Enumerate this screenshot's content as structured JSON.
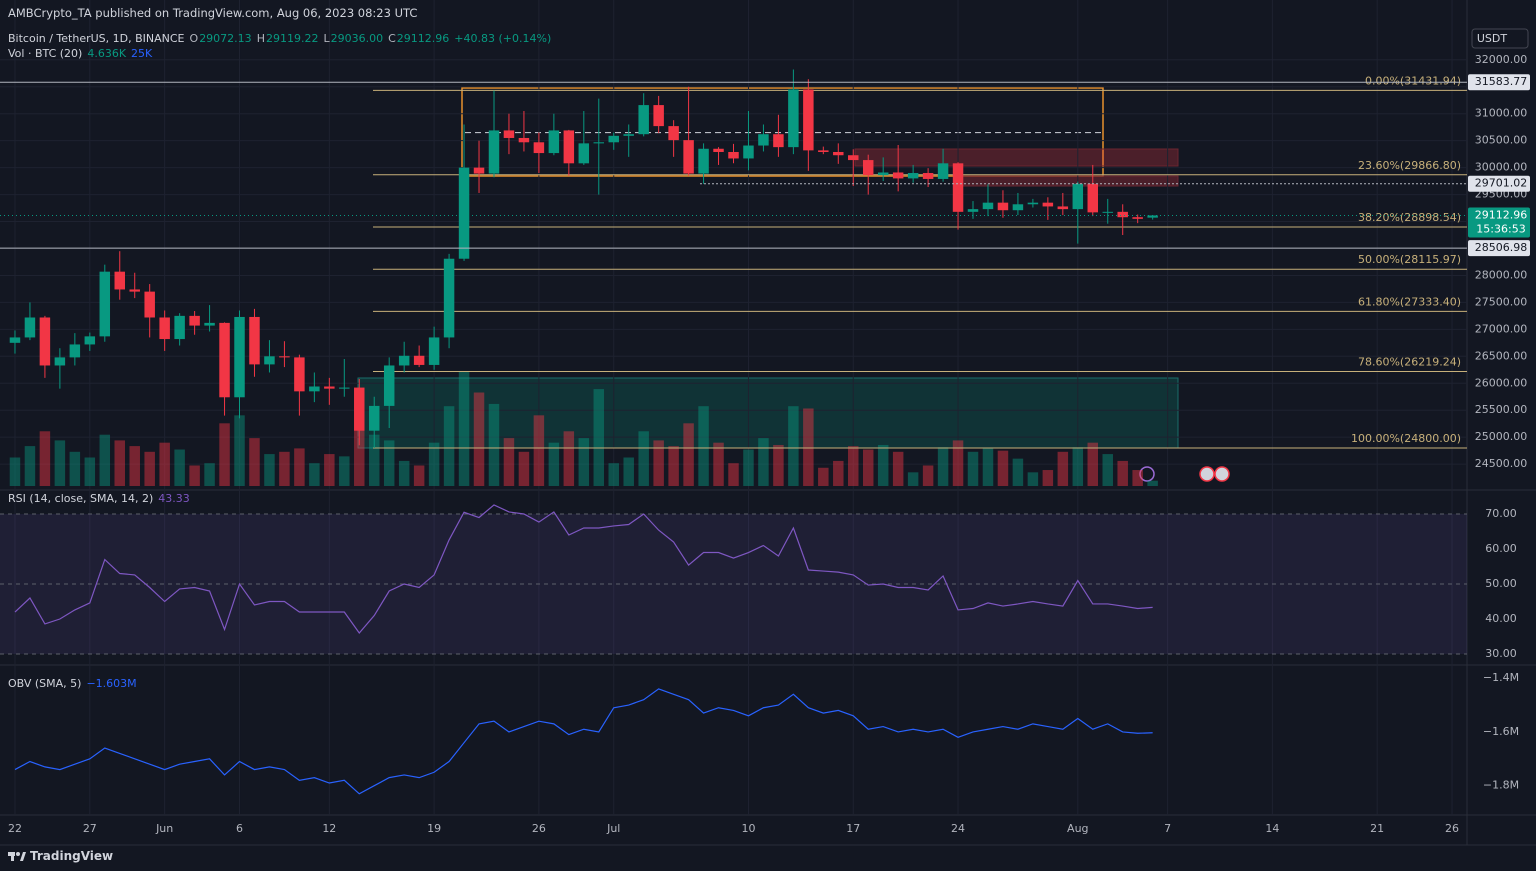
{
  "header": {
    "publisher": "AMBCrypto_TA published on TradingView.com, Aug 06, 2023 08:23 UTC",
    "currency": "USDT",
    "footer": "TradingView"
  },
  "chart_data": [
    {
      "type": "candlestick",
      "title": "Bitcoin / TetherUS, 1D, BINANCE",
      "ohlc_legend": [
        {
          "label": "O",
          "value": "29072.13"
        },
        {
          "label": "H",
          "value": "29119.22"
        },
        {
          "label": "L",
          "value": "29036.00"
        },
        {
          "label": "C",
          "value": "29112.96"
        }
      ],
      "change": "+40.83 (+0.14%)",
      "x": [
        "2023-05-22",
        "2023-05-23",
        "2023-05-24",
        "2023-05-25",
        "2023-05-26",
        "2023-05-27",
        "2023-05-28",
        "2023-05-29",
        "2023-05-30",
        "2023-05-31",
        "2023-06-01",
        "2023-06-02",
        "2023-06-03",
        "2023-06-04",
        "2023-06-05",
        "2023-06-06",
        "2023-06-07",
        "2023-06-08",
        "2023-06-09",
        "2023-06-10",
        "2023-06-11",
        "2023-06-12",
        "2023-06-13",
        "2023-06-14",
        "2023-06-15",
        "2023-06-16",
        "2023-06-17",
        "2023-06-18",
        "2023-06-19",
        "2023-06-20",
        "2023-06-21",
        "2023-06-22",
        "2023-06-23",
        "2023-06-24",
        "2023-06-25",
        "2023-06-26",
        "2023-06-27",
        "2023-06-28",
        "2023-06-29",
        "2023-06-30",
        "2023-07-01",
        "2023-07-02",
        "2023-07-03",
        "2023-07-04",
        "2023-07-05",
        "2023-07-06",
        "2023-07-07",
        "2023-07-08",
        "2023-07-09",
        "2023-07-10",
        "2023-07-11",
        "2023-07-12",
        "2023-07-13",
        "2023-07-14",
        "2023-07-15",
        "2023-07-16",
        "2023-07-17",
        "2023-07-18",
        "2023-07-19",
        "2023-07-20",
        "2023-07-21",
        "2023-07-22",
        "2023-07-23",
        "2023-07-24",
        "2023-07-25",
        "2023-07-26",
        "2023-07-27",
        "2023-07-28",
        "2023-07-29",
        "2023-07-30",
        "2023-07-31",
        "2023-08-01",
        "2023-08-02",
        "2023-08-03",
        "2023-08-04",
        "2023-08-05",
        "2023-08-06"
      ],
      "open": [
        26750,
        26850,
        27220,
        26330,
        26480,
        26720,
        26870,
        28070,
        27740,
        27700,
        27220,
        26820,
        27250,
        27070,
        27120,
        25740,
        27230,
        26350,
        26500,
        26480,
        25850,
        25940,
        25900,
        25920,
        25120,
        25580,
        26330,
        26510,
        26340,
        26850,
        28310,
        30000,
        29890,
        30690,
        30550,
        30470,
        30270,
        30690,
        30080,
        30450,
        30470,
        30590,
        30620,
        31160,
        30770,
        30510,
        29890,
        30350,
        30290,
        30170,
        30410,
        30620,
        30380,
        31450,
        30320,
        30290,
        30230,
        30140,
        29860,
        29910,
        29800,
        29900,
        29790,
        30080,
        29180,
        29230,
        29350,
        29210,
        29320,
        29350,
        29280,
        29230,
        29700,
        29170,
        29180,
        29080,
        29072.13
      ],
      "high": [
        26980,
        27500,
        27250,
        26650,
        26930,
        26940,
        28200,
        28450,
        28050,
        27840,
        27350,
        27300,
        27340,
        27450,
        27130,
        27350,
        27380,
        26800,
        26780,
        26530,
        26200,
        26100,
        26450,
        26080,
        25750,
        26480,
        26770,
        26700,
        27050,
        28400,
        30800,
        30500,
        31430,
        31000,
        31050,
        30650,
        31000,
        30700,
        31050,
        31280,
        30650,
        30800,
        31380,
        31330,
        30880,
        31500,
        30450,
        30380,
        30440,
        31050,
        30800,
        30980,
        31820,
        31640,
        30390,
        30450,
        30340,
        30240,
        30190,
        30420,
        30050,
        29990,
        30350,
        30100,
        29380,
        29690,
        29580,
        29530,
        29420,
        29450,
        29530,
        29740,
        30050,
        29420,
        29320,
        29130,
        29119.22
      ],
      "low": [
        26550,
        26800,
        26100,
        25900,
        26330,
        26600,
        26770,
        27550,
        27580,
        26850,
        26600,
        26700,
        26900,
        26960,
        25400,
        25350,
        26120,
        26200,
        26300,
        25400,
        25650,
        25600,
        25750,
        24850,
        24800,
        25170,
        26200,
        26300,
        26250,
        26650,
        28270,
        29530,
        29820,
        30250,
        30300,
        29900,
        30230,
        29850,
        30050,
        29500,
        30330,
        30200,
        30580,
        30640,
        30200,
        29850,
        29700,
        30050,
        30080,
        29950,
        30300,
        30200,
        30250,
        29940,
        30250,
        30070,
        29660,
        29500,
        29750,
        29560,
        29720,
        29640,
        29740,
        28850,
        29050,
        29100,
        29070,
        29120,
        29260,
        29030,
        29120,
        28590,
        29100,
        28960,
        28750,
        28970,
        29036
      ],
      "close": [
        26850,
        27220,
        26330,
        26480,
        26720,
        26870,
        28070,
        27740,
        27700,
        27220,
        26820,
        27250,
        27070,
        27120,
        25740,
        27230,
        26350,
        26500,
        26480,
        25850,
        25940,
        25900,
        25920,
        25120,
        25580,
        26330,
        26510,
        26340,
        26850,
        28310,
        30000,
        29890,
        30690,
        30550,
        30470,
        30270,
        30690,
        30080,
        30450,
        30470,
        30590,
        30620,
        31160,
        30770,
        30510,
        29890,
        30350,
        30290,
        30170,
        30410,
        30620,
        30380,
        31450,
        30320,
        30290,
        30230,
        30140,
        29860,
        29910,
        29800,
        29900,
        29790,
        30080,
        29180,
        29230,
        29350,
        29210,
        29320,
        29350,
        29280,
        29230,
        29700,
        29170,
        29180,
        29080,
        29050,
        29112.96
      ],
      "volume": {
        "name": "Vol · BTC (20)",
        "legend": [
          "4.636K",
          "25K"
        ],
        "values": [
          25000,
          35000,
          48000,
          40000,
          30000,
          25000,
          45000,
          40000,
          35000,
          30000,
          38000,
          32000,
          18000,
          20000,
          55000,
          62000,
          42000,
          28000,
          30000,
          33000,
          20000,
          28000,
          26000,
          50000,
          45000,
          40000,
          22000,
          18000,
          38000,
          70000,
          100000,
          82000,
          72000,
          42000,
          30000,
          62000,
          38000,
          48000,
          42000,
          85000,
          20000,
          25000,
          48000,
          40000,
          35000,
          55000,
          70000,
          38000,
          20000,
          32000,
          42000,
          36000,
          70000,
          68000,
          16000,
          22000,
          35000,
          32000,
          36000,
          30000,
          12000,
          18000,
          34000,
          40000,
          30000,
          33000,
          31000,
          24000,
          12000,
          14000,
          30000,
          34000,
          38000,
          28000,
          22000,
          14000,
          4636
        ]
      },
      "countdown": "15:36:53",
      "up_color": "#089981",
      "down_color": "#f23645",
      "xlim": [
        "2023-05-21",
        "2023-08-27"
      ],
      "ylim": [
        24020,
        32590
      ],
      "yticks": [
        {
          "value": 24500,
          "label": "24500.00"
        },
        {
          "value": 25000,
          "label": "25000.00"
        },
        {
          "value": 25500,
          "label": "25500.00"
        },
        {
          "value": 26000,
          "label": "26000.00"
        },
        {
          "value": 26500,
          "label": "26500.00"
        },
        {
          "value": 27000,
          "label": "27000.00"
        },
        {
          "value": 27500,
          "label": "27500.00"
        },
        {
          "value": 28000,
          "label": "28000.00"
        },
        {
          "value": 28500,
          "label": "28500.00"
        },
        {
          "value": 29000,
          "label": "29000.00"
        },
        {
          "value": 29500,
          "label": "29500.00"
        },
        {
          "value": 30000,
          "label": "30000.00"
        },
        {
          "value": 30500,
          "label": "30500.00"
        },
        {
          "value": 31000,
          "label": "31000.00"
        },
        {
          "value": 31500,
          "label": "31500.00"
        },
        {
          "value": 32000,
          "label": "32000.00"
        }
      ],
      "grid": true,
      "fib_color": "#c7b07a",
      "fib_levels": [
        {
          "value": 31431.94,
          "label": "0.00%(31431.94)"
        },
        {
          "value": 29866.8,
          "label": "23.60%(29866.80)"
        },
        {
          "value": 28898.54,
          "label": "38.20%(28898.54)"
        },
        {
          "value": 28115.97,
          "label": "50.00%(28115.97)"
        },
        {
          "value": 27333.4,
          "label": "61.80%(27333.40)"
        },
        {
          "value": 26219.24,
          "label": "78.60%(26219.24)"
        },
        {
          "value": 24800.0,
          "label": "100.00%(24800.00)"
        }
      ],
      "price_lines": [
        {
          "value": 31583.77,
          "style": "solid"
        },
        {
          "value": 29701.02,
          "style": "dotted"
        },
        {
          "value": 28506.98,
          "style": "solid"
        }
      ]
    },
    {
      "type": "line",
      "title": "RSI (14, close, SMA, 14, 2)",
      "series": [
        {
          "name": "RSI",
          "color": "#7e57c2",
          "values": [
            42,
            46,
            38.6,
            40,
            42.6,
            44.6,
            57,
            53,
            52.6,
            49,
            45,
            48.6,
            49,
            48,
            37,
            50,
            44,
            45,
            45,
            42,
            42,
            42,
            42,
            36,
            41,
            48,
            50,
            49,
            52.6,
            62.6,
            70.5,
            69,
            72.6,
            70.6,
            70,
            67.7,
            70.6,
            64,
            66,
            66,
            66.6,
            67,
            70,
            65.4,
            62,
            55.4,
            59,
            59,
            57.4,
            59,
            61,
            58,
            66,
            54,
            53.7,
            53.4,
            52.6,
            49.7,
            50,
            49,
            49,
            48.3,
            52.3,
            42.6,
            43,
            44.6,
            43.7,
            44.3,
            45,
            44.3,
            43.7,
            51,
            44.3,
            44.3,
            43.7,
            43,
            43.33
          ]
        }
      ],
      "band": [
        30,
        70
      ],
      "band_color": "rgba(126,87,194,0.12)",
      "levels": [
        70,
        50,
        30
      ],
      "xlim": [
        "2023-05-21",
        "2023-08-27"
      ],
      "ylim": [
        26.86,
        76.86
      ],
      "yticks": [
        {
          "value": 30,
          "label": "30.00"
        },
        {
          "value": 40,
          "label": "40.00"
        },
        {
          "value": 50,
          "label": "50.00"
        },
        {
          "value": 60,
          "label": "60.00"
        },
        {
          "value": 70,
          "label": "70.00"
        }
      ],
      "grid": false
    },
    {
      "type": "line",
      "title": "OBV (SMA, 5)",
      "legend_value": "−1.603M",
      "series": [
        {
          "name": "OBV",
          "color": "#2962ff",
          "values": [
            -1740000,
            -1710000,
            -1730000,
            -1740000,
            -1720000,
            -1700000,
            -1660000,
            -1680000,
            -1700000,
            -1720000,
            -1740000,
            -1720000,
            -1710000,
            -1700000,
            -1760000,
            -1710000,
            -1740000,
            -1730000,
            -1740000,
            -1780000,
            -1770000,
            -1790000,
            -1780000,
            -1830000,
            -1800000,
            -1770000,
            -1760000,
            -1770000,
            -1750000,
            -1710000,
            -1640000,
            -1570000,
            -1560000,
            -1600000,
            -1580000,
            -1560000,
            -1570000,
            -1610000,
            -1590000,
            -1600000,
            -1510000,
            -1500000,
            -1480000,
            -1440000,
            -1460000,
            -1480000,
            -1530000,
            -1510000,
            -1520000,
            -1540000,
            -1510000,
            -1500000,
            -1460000,
            -1510000,
            -1530000,
            -1520000,
            -1540000,
            -1590000,
            -1580000,
            -1600000,
            -1590000,
            -1600000,
            -1590000,
            -1620000,
            -1600000,
            -1590000,
            -1580000,
            -1590000,
            -1570000,
            -1580000,
            -1590000,
            -1550000,
            -1590000,
            -1570000,
            -1600000,
            -1605000,
            -1603000
          ]
        }
      ],
      "xlim": [
        "2023-05-21",
        "2023-08-27"
      ],
      "ylim": [
        -1909000,
        -1351000
      ],
      "yticks": [
        {
          "value": -1800000,
          "label": "−1.8M"
        },
        {
          "value": -1600000,
          "label": "−1.6M"
        },
        {
          "value": -1400000,
          "label": "−1.4M"
        }
      ],
      "xticks": [
        {
          "value": "2023-05-22",
          "label": "22"
        },
        {
          "value": "2023-05-27",
          "label": "27"
        },
        {
          "value": "2023-06-01",
          "label": "Jun"
        },
        {
          "value": "2023-06-06",
          "label": "6"
        },
        {
          "value": "2023-06-12",
          "label": "12"
        },
        {
          "value": "2023-06-19",
          "label": "19"
        },
        {
          "value": "2023-06-26",
          "label": "26"
        },
        {
          "value": "2023-07-01",
          "label": "Jul"
        },
        {
          "value": "2023-07-10",
          "label": "10"
        },
        {
          "value": "2023-07-17",
          "label": "17"
        },
        {
          "value": "2023-07-24",
          "label": "24"
        },
        {
          "value": "2023-08-01",
          "label": "Aug"
        },
        {
          "value": "2023-08-07",
          "label": "7"
        },
        {
          "value": "2023-08-14",
          "label": "14"
        },
        {
          "value": "2023-08-21",
          "label": "21"
        },
        {
          "value": "2023-08-26",
          "label": "26"
        }
      ],
      "grid": false
    }
  ]
}
